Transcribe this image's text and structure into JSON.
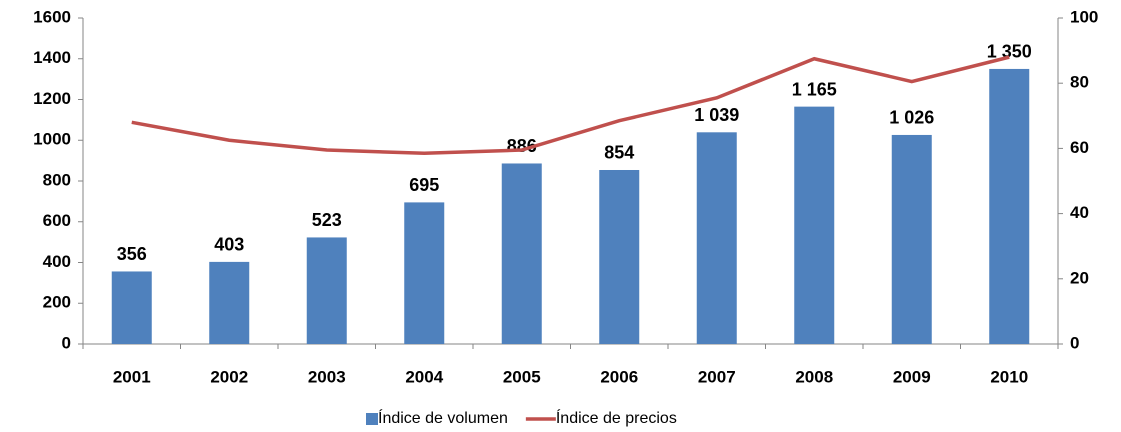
{
  "chart_data": {
    "type": "bar",
    "categories": [
      "2001",
      "2002",
      "2003",
      "2004",
      "2005",
      "2006",
      "2007",
      "2008",
      "2009",
      "2010"
    ],
    "series": [
      {
        "name": "Índice de volumen",
        "type": "bar",
        "color": "#4f81bd",
        "values": [
          356,
          403,
          523,
          695,
          886,
          854,
          1039,
          1165,
          1026,
          1350
        ],
        "value_labels": [
          "356",
          "403",
          "523",
          "695",
          "886",
          "854",
          "1 039",
          "1 165",
          "1 026",
          "1 350"
        ]
      },
      {
        "name": "Índice de precios",
        "type": "line",
        "axis": "y2",
        "color": "#c0504d",
        "values": [
          68,
          62.5,
          59.5,
          58.5,
          59.5,
          68.5,
          75.5,
          87.5,
          80.5,
          88
        ]
      }
    ],
    "ylim": [
      0,
      1600
    ],
    "yticks": [
      0,
      200,
      400,
      600,
      800,
      1000,
      1200,
      1400,
      1600
    ],
    "y2lim": [
      0,
      100
    ],
    "y2ticks": [
      0,
      20,
      40,
      60,
      80,
      100
    ],
    "grid": false,
    "legend": "bottom"
  }
}
